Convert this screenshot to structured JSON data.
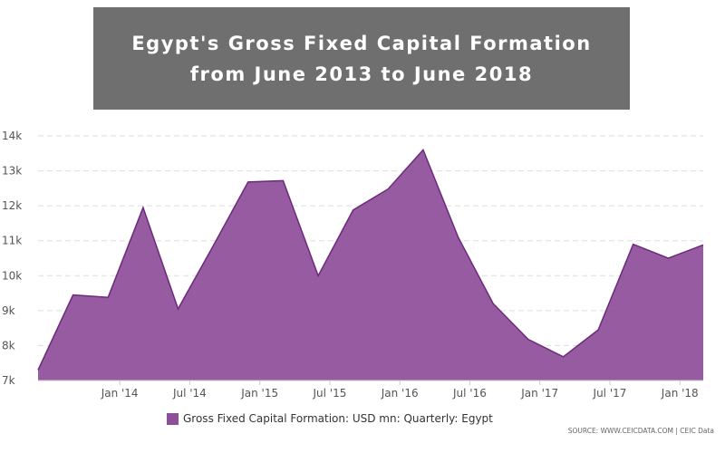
{
  "header": {
    "title_line1": "Egypt's Gross Fixed Capital Formation",
    "title_line2": "from June 2013 to June 2018"
  },
  "colors": {
    "title_background": "#6f6f6f",
    "area_fill": "#8e4f99",
    "area_stroke": "#6c2a7a",
    "grid": "#dddddd"
  },
  "chart_data": {
    "type": "area",
    "title": "Egypt's Gross Fixed Capital Formation from June 2013 to June 2018",
    "series": [
      {
        "name": "Gross Fixed Capital Formation: USD mn: Quarterly: Egypt",
        "x": [
          "Jun 2013",
          "Sep 2013",
          "Dec 2013",
          "Mar 2014",
          "Jun 2014",
          "Sep 2014",
          "Dec 2014",
          "Mar 2015",
          "Jun 2015",
          "Sep 2015",
          "Dec 2015",
          "Mar 2016",
          "Jun 2016",
          "Sep 2016",
          "Dec 2016",
          "Mar 2017",
          "Jun 2017",
          "Sep 2017",
          "Dec 2017",
          "Mar 2018",
          "Jun 2018"
        ],
        "values": [
          7300,
          9450,
          9380,
          11950,
          9050,
          10850,
          12680,
          12720,
          10000,
          11880,
          12480,
          13600,
          11100,
          9200,
          8180,
          7680,
          8450,
          10900,
          10500,
          10880,
          null
        ]
      }
    ],
    "xticks": [
      {
        "label": "Jan '14",
        "x": "Jan 2014"
      },
      {
        "label": "Jul '14",
        "x": "Jul 2014"
      },
      {
        "label": "Jan '15",
        "x": "Jan 2015"
      },
      {
        "label": "Jul '15",
        "x": "Jul 2015"
      },
      {
        "label": "Jan '16",
        "x": "Jan 2016"
      },
      {
        "label": "Jul '16",
        "x": "Jul 2016"
      },
      {
        "label": "Jan '17",
        "x": "Jan 2017"
      },
      {
        "label": "Jul '17",
        "x": "Jul 2017"
      },
      {
        "label": "Jan '18",
        "x": "Jan 2018"
      }
    ],
    "yticks": [
      "7k",
      "8k",
      "9k",
      "10k",
      "11k",
      "12k",
      "13k",
      "14k"
    ],
    "ylim": [
      7000,
      14000
    ],
    "grid": true,
    "legend_position": "bottom-center"
  },
  "legend": {
    "label": "Gross Fixed Capital Formation: USD mn: Quarterly: Egypt"
  },
  "source": "SOURCE: WWW.CEICDATA.COM | CEIC Data"
}
